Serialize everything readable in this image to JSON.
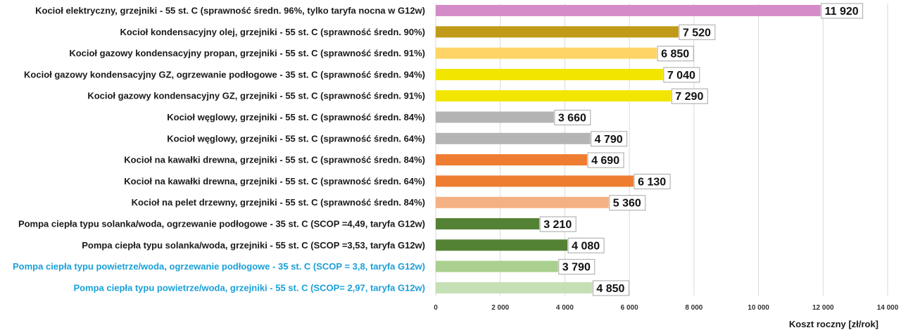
{
  "chart_data": {
    "type": "bar",
    "orientation": "horizontal",
    "xlabel": "Koszt roczny [zł/rok]",
    "xlim": [
      0,
      14000
    ],
    "xticks": [
      0,
      2000,
      4000,
      6000,
      8000,
      10000,
      12000,
      14000
    ],
    "xtick_labels": [
      "0",
      "2 000",
      "4 000",
      "6 000",
      "8 000",
      "10 000",
      "12 000",
      "14 000"
    ],
    "grid": true,
    "bars": [
      {
        "label": "Kocioł  elektryczny,  grzejniki - 55 st. C  (sprawność średn. 96%, tylko taryfa nocna w G12w)",
        "value": 11920,
        "value_label": "11 920",
        "color": "#d48cc8",
        "label_color": "#1a1a1a"
      },
      {
        "label": "Kocioł  kondensacyjny olej,  grzejniki - 55 st. C (sprawność średn. 90%)",
        "value": 7520,
        "value_label": "7 520",
        "color": "#c09a18",
        "label_color": "#1a1a1a"
      },
      {
        "label": "Kocioł gazowy kondensacyjny propan, grzejniki - 55 st. C (sprawność średn. 91%)",
        "value": 6850,
        "value_label": "6 850",
        "color": "#fed466",
        "label_color": "#1a1a1a"
      },
      {
        "label": "Kocioł gazowy kondensacyjny GZ, ogrzewanie podłogowe - 35 st. C (sprawność średn. 94%)",
        "value": 7040,
        "value_label": "7 040",
        "color": "#f2e600",
        "label_color": "#1a1a1a"
      },
      {
        "label": "Kocioł gazowy kondensacyjny GZ, grzejniki - 55 st. C (sprawność średn. 91%)",
        "value": 7290,
        "value_label": "7 290",
        "color": "#f2e600",
        "label_color": "#1a1a1a"
      },
      {
        "label": "Kocioł węglowy,  grzejniki - 55 st. C (sprawność średn. 84%)",
        "value": 3660,
        "value_label": "3 660",
        "color": "#b4b4b4",
        "label_color": "#1a1a1a"
      },
      {
        "label": "Kocioł węglowy,  grzejniki - 55 st. C (sprawność średn. 64%)",
        "value": 4790,
        "value_label": "4 790",
        "color": "#b4b4b4",
        "label_color": "#1a1a1a"
      },
      {
        "label": "Kocioł na kawałki drewna, grzejniki - 55 st. C (sprawność średn. 84%)",
        "value": 4690,
        "value_label": "4 690",
        "color": "#ee7d31",
        "label_color": "#1a1a1a"
      },
      {
        "label": "Kocioł na kawałki drewna, grzejniki - 55 st. C (sprawność średn. 64%)",
        "value": 6130,
        "value_label": "6 130",
        "color": "#ee7d31",
        "label_color": "#1a1a1a"
      },
      {
        "label": "Kocioł na pelet drzewny, grzejniki - 55 st. C (sprawność średn. 84%)",
        "value": 5360,
        "value_label": "5 360",
        "color": "#f4b183",
        "label_color": "#1a1a1a"
      },
      {
        "label": "Pompa ciepła typu solanka/woda, ogrzewanie podłogowe - 35 st. C (SCOP =4,49, taryfa G12w)",
        "value": 3210,
        "value_label": "3 210",
        "color": "#548235",
        "label_color": "#1a1a1a"
      },
      {
        "label": "Pompa ciepła typu solanka/woda, grzejniki - 55 st. C (SCOP =3,53, taryfa G12w)",
        "value": 4080,
        "value_label": "4 080",
        "color": "#548235",
        "label_color": "#1a1a1a"
      },
      {
        "label": "Pompa ciepła typu powietrze/woda, ogrzewanie podłogowe - 35 st. C (SCOP = 3,8, taryfa G12w)",
        "value": 3790,
        "value_label": "3 790",
        "color": "#a9d08e",
        "label_color": "#1aa0d8"
      },
      {
        "label": "Pompa ciepła typu powietrze/woda, grzejniki - 55 st. C (SCOP= 2,97, taryfa G12w)",
        "value": 4850,
        "value_label": "4 850",
        "color": "#c5e0b4",
        "label_color": "#1aa0d8"
      }
    ]
  }
}
